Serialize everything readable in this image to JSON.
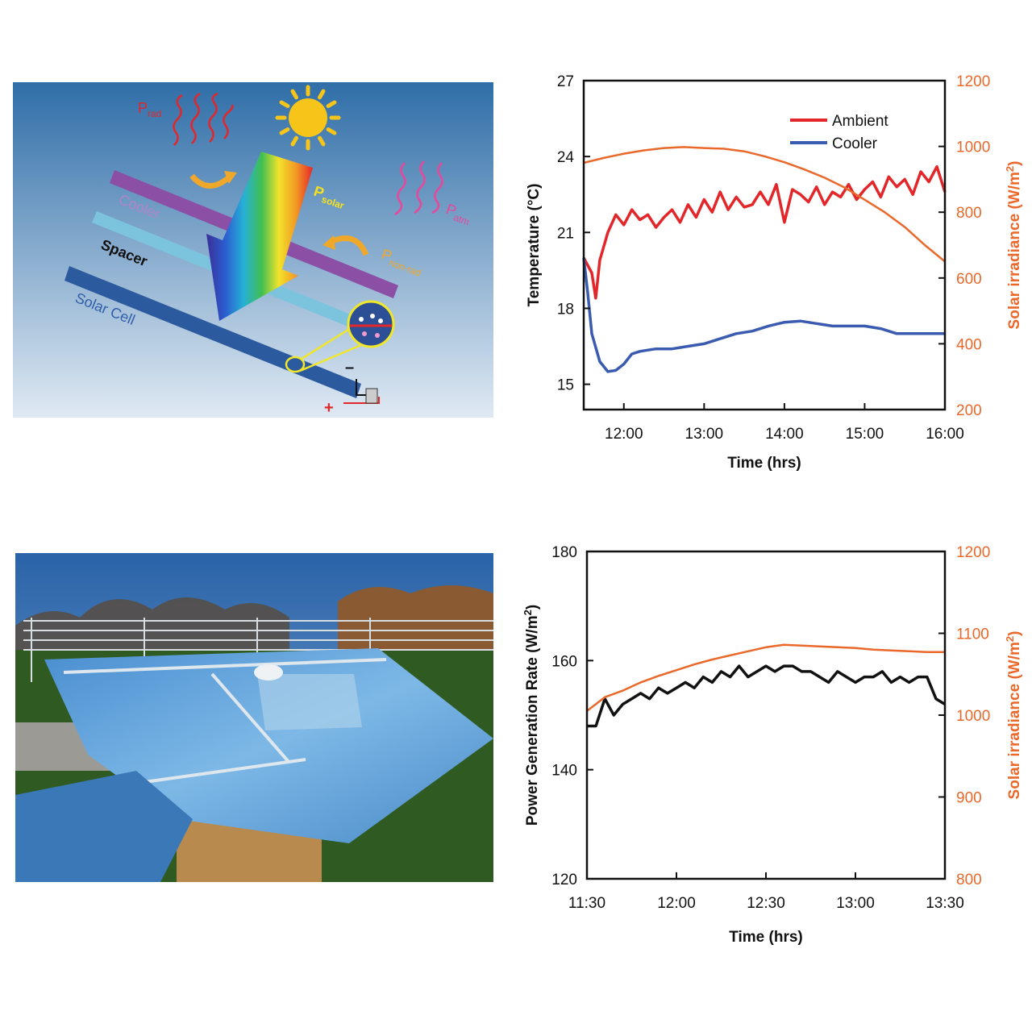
{
  "schematic": {
    "labels": {
      "prad_main": "P",
      "prad_sub": "rad",
      "psolar_main": "P",
      "psolar_sub": "solar",
      "patm_main": "P",
      "patm_sub": "atm",
      "pnonrad_main": "P",
      "pnonrad_sub": "non-rad",
      "cooler": "Cooler",
      "spacer": "Spacer",
      "solar_cell": "Solar Cell",
      "minus": "–",
      "plus": "+"
    },
    "colors": {
      "sky_top": "#2f6ea8",
      "sky_bottom": "#dfe9f3",
      "cooler": "#8c4fa6",
      "spacer": "#7cc3de",
      "solar_cell": "#2c5a9e",
      "sun": "#f7c51a",
      "rad": "#e3262a",
      "atm": "#e8479a",
      "nonrad": "#f0a82a"
    }
  },
  "photo": {
    "colors": {
      "sky": "#2e6fb5",
      "panel": "#5a9fd8",
      "grass": "#2f5a22",
      "wood": "#b88a4e"
    }
  },
  "chart_data": [
    {
      "type": "line",
      "xlabel": "Time (hrs)",
      "ylabel": "Temperature (°C)",
      "y2label_main": "Solar irradiance (W/m",
      "y2label_sup": "2",
      "y2label_close": ")",
      "xlim": [
        11.5,
        16.0
      ],
      "ylim": [
        14,
        27
      ],
      "y2lim": [
        200,
        1200
      ],
      "xticks": [
        12,
        13,
        14,
        15,
        16
      ],
      "xtick_labels": [
        "12:00",
        "13:00",
        "14:00",
        "15:00",
        "16:00"
      ],
      "yticks": [
        15,
        18,
        21,
        24,
        27
      ],
      "y2ticks": [
        200,
        400,
        600,
        800,
        1000,
        1200
      ],
      "legend": {
        "position": "top-right",
        "entries": [
          "Ambient",
          "Cooler"
        ]
      },
      "series": [
        {
          "name": "Ambient",
          "axis": "left",
          "color": "#e3262a",
          "x": [
            11.5,
            11.6,
            11.65,
            11.7,
            11.8,
            11.9,
            12.0,
            12.1,
            12.2,
            12.3,
            12.4,
            12.5,
            12.6,
            12.7,
            12.8,
            12.9,
            13.0,
            13.1,
            13.2,
            13.3,
            13.4,
            13.5,
            13.6,
            13.7,
            13.8,
            13.9,
            14.0,
            14.1,
            14.2,
            14.3,
            14.4,
            14.5,
            14.6,
            14.7,
            14.8,
            14.9,
            15.0,
            15.1,
            15.2,
            15.3,
            15.4,
            15.5,
            15.6,
            15.7,
            15.8,
            15.9,
            16.0
          ],
          "y": [
            20.0,
            19.4,
            18.4,
            19.9,
            21.0,
            21.7,
            21.3,
            21.9,
            21.5,
            21.7,
            21.2,
            21.6,
            21.9,
            21.4,
            22.1,
            21.6,
            22.3,
            21.8,
            22.6,
            21.9,
            22.4,
            22.0,
            22.1,
            22.6,
            22.1,
            22.9,
            21.4,
            22.7,
            22.5,
            22.2,
            22.8,
            22.1,
            22.6,
            22.4,
            22.9,
            22.3,
            22.7,
            23.0,
            22.4,
            23.2,
            22.8,
            23.1,
            22.5,
            23.4,
            23.0,
            23.6,
            22.6
          ]
        },
        {
          "name": "Cooler",
          "axis": "left",
          "color": "#3a5bb0",
          "x": [
            11.5,
            11.55,
            11.6,
            11.7,
            11.8,
            11.9,
            12.0,
            12.1,
            12.2,
            12.3,
            12.4,
            12.6,
            12.8,
            13.0,
            13.2,
            13.4,
            13.6,
            13.8,
            14.0,
            14.2,
            14.4,
            14.6,
            14.8,
            15.0,
            15.2,
            15.4,
            15.6,
            15.8,
            16.0
          ],
          "y": [
            20.0,
            18.6,
            17.0,
            15.9,
            15.5,
            15.55,
            15.8,
            16.2,
            16.3,
            16.35,
            16.4,
            16.4,
            16.5,
            16.6,
            16.8,
            17.0,
            17.1,
            17.3,
            17.45,
            17.5,
            17.4,
            17.3,
            17.3,
            17.3,
            17.2,
            17.0,
            17.0,
            17.0,
            17.0
          ]
        },
        {
          "name": "Solar irradiance",
          "axis": "right",
          "color": "#e9682a",
          "x": [
            11.5,
            11.75,
            12.0,
            12.25,
            12.5,
            12.75,
            13.0,
            13.25,
            13.5,
            13.75,
            14.0,
            14.25,
            14.5,
            14.75,
            15.0,
            15.25,
            15.5,
            15.75,
            16.0
          ],
          "y": [
            950,
            965,
            978,
            988,
            995,
            998,
            995,
            993,
            985,
            970,
            952,
            930,
            905,
            875,
            838,
            800,
            755,
            700,
            650
          ]
        }
      ]
    },
    {
      "type": "line",
      "xlabel": "Time (hrs)",
      "ylabel_main": "Power Generation Rate (W/m",
      "ylabel_sup": "2",
      "ylabel_close": ")",
      "y2label_main": "Solar irradiance (W/m",
      "y2label_sup": "2",
      "y2label_close": ")",
      "xlim": [
        11.5,
        13.5
      ],
      "ylim": [
        120,
        180
      ],
      "y2lim": [
        800,
        1200
      ],
      "xticks": [
        11.5,
        12,
        12.5,
        13,
        13.5
      ],
      "xtick_labels": [
        "11:30",
        "12:00",
        "12:30",
        "13:00",
        "13:30"
      ],
      "yticks": [
        120,
        140,
        160,
        180
      ],
      "y2ticks": [
        800,
        900,
        1000,
        1100,
        1200
      ],
      "series": [
        {
          "name": "Power generation",
          "axis": "left",
          "color": "#111111",
          "x": [
            11.5,
            11.55,
            11.6,
            11.65,
            11.7,
            11.75,
            11.8,
            11.85,
            11.9,
            11.95,
            12.0,
            12.05,
            12.1,
            12.15,
            12.2,
            12.25,
            12.3,
            12.35,
            12.4,
            12.45,
            12.5,
            12.55,
            12.6,
            12.65,
            12.7,
            12.75,
            12.8,
            12.85,
            12.9,
            12.95,
            13.0,
            13.05,
            13.1,
            13.15,
            13.2,
            13.25,
            13.3,
            13.35,
            13.4,
            13.45,
            13.5
          ],
          "y": [
            148,
            148,
            153,
            150,
            152,
            153,
            154,
            153,
            155,
            154,
            155,
            156,
            155,
            157,
            156,
            158,
            157,
            159,
            157,
            158,
            159,
            158,
            159,
            159,
            158,
            158,
            157,
            156,
            158,
            157,
            156,
            157,
            157,
            158,
            156,
            157,
            156,
            157,
            157,
            153,
            152
          ]
        },
        {
          "name": "Solar irradiance",
          "axis": "right",
          "color": "#e9682a",
          "x": [
            11.5,
            11.6,
            11.7,
            11.8,
            11.9,
            12.0,
            12.1,
            12.2,
            12.3,
            12.4,
            12.5,
            12.6,
            12.7,
            12.8,
            12.9,
            13.0,
            13.1,
            13.2,
            13.3,
            13.4,
            13.5
          ],
          "y": [
            1005,
            1022,
            1030,
            1040,
            1048,
            1055,
            1062,
            1068,
            1073,
            1078,
            1083,
            1086,
            1085,
            1084,
            1083,
            1082,
            1080,
            1079,
            1078,
            1077,
            1077
          ]
        }
      ]
    }
  ]
}
